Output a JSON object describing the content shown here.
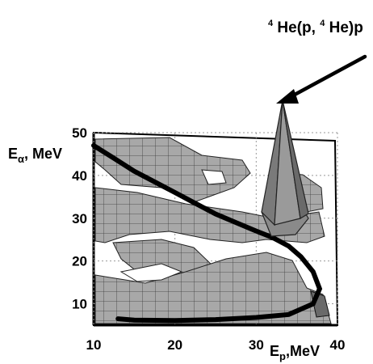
{
  "chart_data": {
    "type": "surface-3d",
    "x_axis": {
      "label_main": "E",
      "label_sub": "p",
      "label_unit": ",MeV",
      "ticks": [
        10,
        20,
        30,
        40
      ],
      "range": [
        10,
        40
      ]
    },
    "y_axis": {
      "label_main": "E",
      "label_sub": "α",
      "label_unit": ", MeV",
      "ticks": [
        10,
        20,
        30,
        40,
        50
      ],
      "range": [
        5,
        50
      ]
    },
    "grid": true,
    "annotation": {
      "text": "4He(p,4He)p",
      "parts": [
        {
          "text": "4",
          "sup": true
        },
        {
          "text": "He(p,",
          "sup": false
        },
        {
          "text": "4",
          "sup": true
        },
        {
          "text": "He)p",
          "sup": false
        }
      ],
      "peak_x": 33,
      "peak_y": 30
    },
    "kinematic_curve": [
      [
        10,
        47
      ],
      [
        12.5,
        44
      ],
      [
        15,
        41
      ],
      [
        17.5,
        38.5
      ],
      [
        20,
        36
      ],
      [
        22.5,
        33.5
      ],
      [
        25,
        31
      ],
      [
        27.5,
        29
      ],
      [
        30,
        27
      ],
      [
        32,
        25.5
      ],
      [
        34,
        23.5
      ],
      [
        35.5,
        21
      ],
      [
        37,
        17.5
      ],
      [
        37.8,
        13.5
      ],
      [
        37,
        10
      ],
      [
        34,
        7.5
      ],
      [
        30,
        6.8
      ],
      [
        25,
        6.3
      ],
      [
        20,
        6.1
      ],
      [
        15,
        6.2
      ],
      [
        13,
        6.5
      ]
    ],
    "colors": {
      "surface_fill": "#a8a8a8",
      "surface_grid": "#3a3a3a",
      "curve": "#000000",
      "peak": "#7a7a7a"
    }
  }
}
